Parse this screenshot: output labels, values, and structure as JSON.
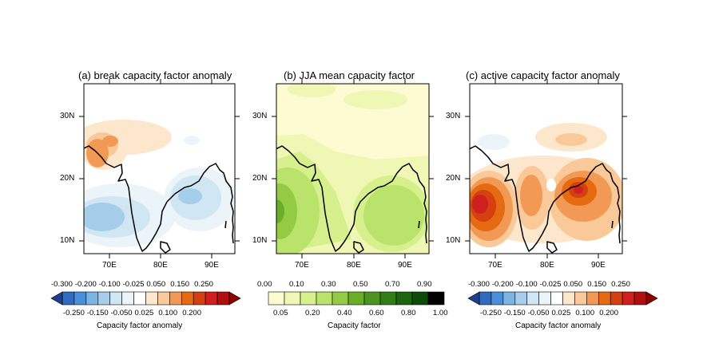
{
  "panels": [
    {
      "title": "(a) break capacity factor anomaly",
      "lat_ticks": [
        "30N",
        "20N",
        "10N"
      ],
      "lon_ticks": [
        "70E",
        "80E",
        "90E"
      ]
    },
    {
      "title": "(b) JJA mean capacity factor",
      "lat_ticks": [
        "30N",
        "20N",
        "10N"
      ],
      "lon_ticks": [
        "70E",
        "80E",
        "90E"
      ]
    },
    {
      "title": "(c) active capacity factor anomaly",
      "lat_ticks": [
        "30N",
        "20N",
        "10N"
      ],
      "lon_ticks": [
        "70E",
        "80E",
        "90E"
      ]
    }
  ],
  "colorbars": [
    {
      "title": "Capacity factor anomaly",
      "labels_top": [
        "-0.300",
        "-0.200",
        "-0.100",
        "-0.025",
        "0.050",
        "0.150",
        "0.250"
      ],
      "labels_bottom": [
        "-0.250",
        "-0.150",
        "-0.050",
        "0.025",
        "0.100",
        "0.200"
      ],
      "colors": [
        "#1c3f8f",
        "#2f6bc0",
        "#4a90d9",
        "#7ab5e3",
        "#a6cde9",
        "#d0e6f2",
        "#eaf4f9",
        "#ffffff",
        "#fde7cc",
        "#f9c999",
        "#f29a55",
        "#e56a12",
        "#d44010",
        "#cf1f1f",
        "#b30e0e",
        "#8c0000"
      ]
    },
    {
      "title": "Capacity factor",
      "labels_top": [
        "0.00",
        "0.10",
        "0.30",
        "0.50",
        "0.70",
        "0.90"
      ],
      "labels_bottom": [
        "0.05",
        "0.20",
        "0.40",
        "0.60",
        "0.80",
        "1.00"
      ],
      "colors": [
        "#fcfbd2",
        "#eff7b4",
        "#d7f08e",
        "#b9e36b",
        "#93cc44",
        "#6aad29",
        "#4b941f",
        "#327d17",
        "#1d6410",
        "#0d4c08",
        "#000000"
      ]
    },
    {
      "title": "Capacity factor anomaly",
      "labels_top": [
        "-0.300",
        "-0.200",
        "-0.100",
        "-0.025",
        "0.050",
        "0.150",
        "0.250"
      ],
      "labels_bottom": [
        "-0.250",
        "-0.150",
        "-0.050",
        "0.025",
        "0.100",
        "0.200"
      ],
      "colors": [
        "#1c3f8f",
        "#2f6bc0",
        "#4a90d9",
        "#7ab5e3",
        "#a6cde9",
        "#d0e6f2",
        "#eaf4f9",
        "#ffffff",
        "#fde7cc",
        "#f9c999",
        "#f29a55",
        "#e56a12",
        "#d44010",
        "#cf1f1f",
        "#b30e0e",
        "#8c0000"
      ]
    }
  ]
}
